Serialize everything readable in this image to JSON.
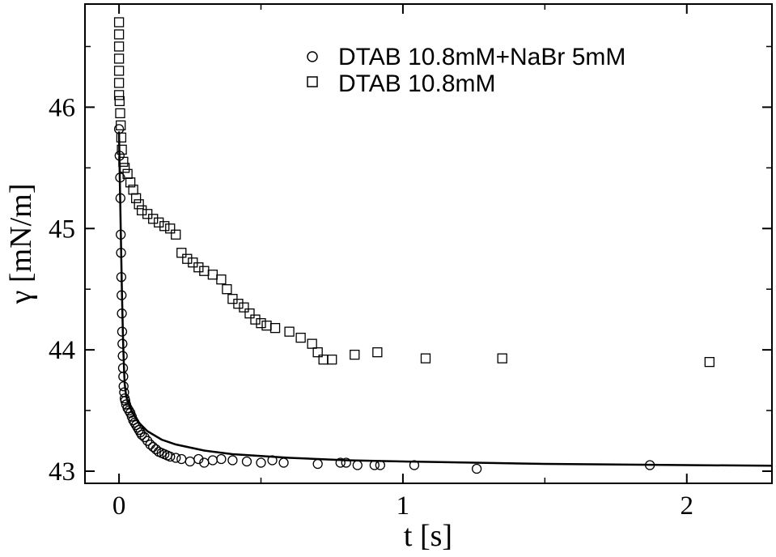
{
  "chart_data": {
    "type": "scatter",
    "title": "",
    "xlabel": "t [s]",
    "ylabel": "γ [mN/m]",
    "xlim": [
      -0.12,
      2.3
    ],
    "ylim": [
      42.9,
      46.85
    ],
    "xticks": [
      0,
      1,
      2
    ],
    "yticks": [
      43,
      44,
      45,
      46
    ],
    "xtick_labels": [
      "0",
      "1",
      "2"
    ],
    "ytick_labels": [
      "43",
      "44",
      "45",
      "46"
    ],
    "grid": false,
    "legend_position": "top-right",
    "series": [
      {
        "name": "DTAB 10.8mM+NaBr 5mM",
        "marker": "circle",
        "points": [
          [
            0.0,
            45.82
          ],
          [
            0.002,
            45.6
          ],
          [
            0.004,
            45.42
          ],
          [
            0.005,
            45.25
          ],
          [
            0.006,
            44.95
          ],
          [
            0.007,
            44.8
          ],
          [
            0.008,
            44.6
          ],
          [
            0.009,
            44.45
          ],
          [
            0.01,
            44.3
          ],
          [
            0.011,
            44.15
          ],
          [
            0.012,
            44.05
          ],
          [
            0.013,
            43.95
          ],
          [
            0.014,
            43.85
          ],
          [
            0.015,
            43.78
          ],
          [
            0.016,
            43.7
          ],
          [
            0.018,
            43.65
          ],
          [
            0.02,
            43.6
          ],
          [
            0.022,
            43.58
          ],
          [
            0.025,
            43.55
          ],
          [
            0.03,
            43.52
          ],
          [
            0.035,
            43.5
          ],
          [
            0.04,
            43.48
          ],
          [
            0.045,
            43.45
          ],
          [
            0.05,
            43.42
          ],
          [
            0.055,
            43.4
          ],
          [
            0.06,
            43.38
          ],
          [
            0.065,
            43.36
          ],
          [
            0.07,
            43.34
          ],
          [
            0.075,
            43.32
          ],
          [
            0.08,
            43.3
          ],
          [
            0.09,
            43.28
          ],
          [
            0.1,
            43.25
          ],
          [
            0.11,
            43.22
          ],
          [
            0.12,
            43.2
          ],
          [
            0.13,
            43.18
          ],
          [
            0.14,
            43.16
          ],
          [
            0.15,
            43.15
          ],
          [
            0.16,
            43.14
          ],
          [
            0.17,
            43.13
          ],
          [
            0.18,
            43.12
          ],
          [
            0.2,
            43.11
          ],
          [
            0.22,
            43.1
          ],
          [
            0.25,
            43.08
          ],
          [
            0.28,
            43.1
          ],
          [
            0.3,
            43.07
          ],
          [
            0.33,
            43.09
          ],
          [
            0.36,
            43.1
          ],
          [
            0.4,
            43.09
          ],
          [
            0.45,
            43.08
          ],
          [
            0.5,
            43.07
          ],
          [
            0.54,
            43.09
          ],
          [
            0.58,
            43.07
          ],
          [
            0.7,
            43.06
          ],
          [
            0.78,
            43.07
          ],
          [
            0.8,
            43.07
          ],
          [
            0.84,
            43.05
          ],
          [
            0.9,
            43.05
          ],
          [
            0.92,
            43.05
          ],
          [
            1.04,
            43.05
          ],
          [
            1.26,
            43.02
          ],
          [
            1.87,
            43.05
          ]
        ]
      },
      {
        "name": "DTAB 10.8mM",
        "marker": "square",
        "points": [
          [
            0.0,
            46.7
          ],
          [
            0.0,
            46.6
          ],
          [
            0.0,
            46.5
          ],
          [
            0.0,
            46.4
          ],
          [
            0.0,
            46.3
          ],
          [
            0.0,
            46.2
          ],
          [
            0.0,
            46.1
          ],
          [
            0.002,
            46.05
          ],
          [
            0.004,
            45.95
          ],
          [
            0.006,
            45.85
          ],
          [
            0.008,
            45.75
          ],
          [
            0.01,
            45.65
          ],
          [
            0.015,
            45.55
          ],
          [
            0.02,
            45.5
          ],
          [
            0.03,
            45.45
          ],
          [
            0.04,
            45.38
          ],
          [
            0.05,
            45.32
          ],
          [
            0.06,
            45.25
          ],
          [
            0.07,
            45.2
          ],
          [
            0.08,
            45.15
          ],
          [
            0.1,
            45.12
          ],
          [
            0.12,
            45.08
          ],
          [
            0.14,
            45.05
          ],
          [
            0.16,
            45.02
          ],
          [
            0.18,
            45.0
          ],
          [
            0.2,
            44.95
          ],
          [
            0.22,
            44.8
          ],
          [
            0.24,
            44.75
          ],
          [
            0.26,
            44.72
          ],
          [
            0.28,
            44.68
          ],
          [
            0.3,
            44.65
          ],
          [
            0.33,
            44.62
          ],
          [
            0.36,
            44.58
          ],
          [
            0.38,
            44.5
          ],
          [
            0.4,
            44.42
          ],
          [
            0.42,
            44.38
          ],
          [
            0.44,
            44.35
          ],
          [
            0.46,
            44.3
          ],
          [
            0.48,
            44.25
          ],
          [
            0.5,
            44.22
          ],
          [
            0.52,
            44.2
          ],
          [
            0.55,
            44.18
          ],
          [
            0.6,
            44.15
          ],
          [
            0.64,
            44.1
          ],
          [
            0.68,
            44.05
          ],
          [
            0.7,
            43.98
          ],
          [
            0.72,
            43.92
          ],
          [
            0.75,
            43.92
          ],
          [
            0.83,
            43.96
          ],
          [
            0.91,
            43.98
          ],
          [
            1.08,
            43.93
          ],
          [
            1.35,
            43.93
          ],
          [
            2.08,
            43.9
          ]
        ]
      }
    ],
    "fit_curve": {
      "name": "",
      "style": "solid-line",
      "points": [
        [
          0.0,
          45.8
        ],
        [
          0.002,
          45.5
        ],
        [
          0.004,
          45.25
        ],
        [
          0.006,
          45.0
        ],
        [
          0.008,
          44.75
        ],
        [
          0.01,
          44.5
        ],
        [
          0.012,
          44.3
        ],
        [
          0.014,
          44.1
        ],
        [
          0.016,
          43.95
        ],
        [
          0.018,
          43.82
        ],
        [
          0.02,
          43.72
        ],
        [
          0.025,
          43.62
        ],
        [
          0.03,
          43.58
        ],
        [
          0.04,
          43.52
        ],
        [
          0.05,
          43.47
        ],
        [
          0.07,
          43.4
        ],
        [
          0.1,
          43.33
        ],
        [
          0.15,
          43.26
        ],
        [
          0.2,
          43.22
        ],
        [
          0.3,
          43.17
        ],
        [
          0.4,
          43.14
        ],
        [
          0.6,
          43.11
        ],
        [
          0.8,
          43.09
        ],
        [
          1.0,
          43.08
        ],
        [
          1.5,
          43.06
        ],
        [
          2.0,
          43.05
        ],
        [
          2.3,
          43.045
        ]
      ]
    }
  }
}
